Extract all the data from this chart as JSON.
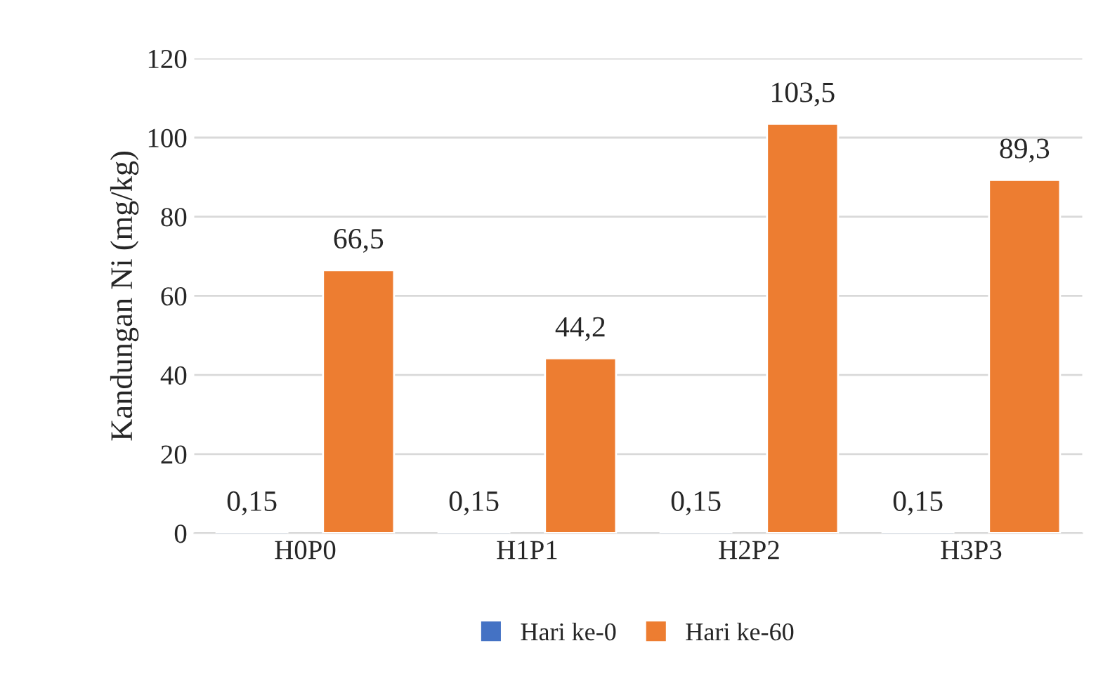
{
  "chart_data": {
    "type": "bar",
    "ylabel": "Kandungan Ni (mg/kg)",
    "categories": [
      "H0P0",
      "H1P1",
      "H2P2",
      "H3P3"
    ],
    "series": [
      {
        "name": "Hari ke-0",
        "color": "#4472c4",
        "values": [
          0.15,
          0.15,
          0.15,
          0.15
        ],
        "value_labels": [
          "0,15",
          "0,15",
          "0,15",
          "0,15"
        ]
      },
      {
        "name": "Hari ke-60",
        "color": "#ed7d31",
        "values": [
          66.5,
          44.2,
          103.5,
          89.3
        ],
        "value_labels": [
          "66,5",
          "44,2",
          "103,5",
          "89,3"
        ]
      }
    ],
    "ylim": [
      0,
      120
    ],
    "yticks": [
      0,
      20,
      40,
      60,
      80,
      100,
      120
    ],
    "grid": "y",
    "legend": "bottom"
  }
}
